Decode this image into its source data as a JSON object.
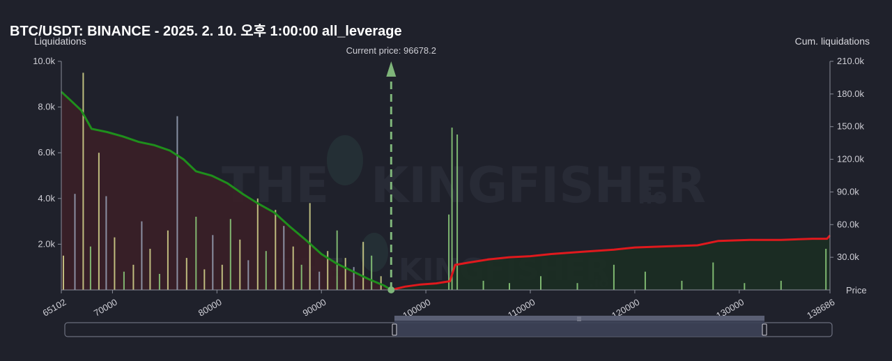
{
  "title": "BTC/USDT: BINANCE - 2025. 2. 10. 오후 1:00:00 all_leverage",
  "watermark": {
    "brand": "THE",
    "brand2": "KINGFISHER",
    "suffix": ".io"
  },
  "colors": {
    "background": "#1f212b",
    "long_cum_line": "#1f8f1c",
    "short_cum_line": "#e0191d",
    "long_area": "#3a1f27",
    "short_area": "#1b2e22",
    "bar_yellow": "#d8d88e",
    "bar_green": "#8fd17e",
    "bar_grey": "#9aa3b8",
    "current_price_line": "#7fb57a",
    "scrollbar_fill": "#3d4258"
  },
  "chart_data": {
    "type": "bar",
    "title": "BTC/USDT: BINANCE - 2025. 2. 10. 오후 1:00:00 all_leverage",
    "xlabel": "Price",
    "ylabel": "Liquidations",
    "y2label": "Cum. liquidations",
    "xlim": [
      65102,
      138686
    ],
    "ylim": [
      0,
      10000
    ],
    "y2lim": [
      0,
      210000
    ],
    "x_ticks": [
      "65102",
      "70000",
      "80000",
      "90000",
      "100000",
      "110000",
      "120000",
      "130000",
      "138686"
    ],
    "y_ticks": [
      "10.0k",
      "8.0k",
      "6.0k",
      "4.0k",
      "2.0k"
    ],
    "y2_ticks": [
      "210.0k",
      "180.0k",
      "150.0k",
      "120.0k",
      "90.0k",
      "60.0k",
      "30.0k"
    ],
    "current_price": 96678.2,
    "current_price_label": "Current price: 96678.2",
    "cumulative_long": {
      "name": "",
      "x": [
        65102,
        66000,
        67000,
        68000,
        69500,
        71000,
        72500,
        74000,
        75500,
        76800,
        78000,
        79500,
        81000,
        82500,
        84000,
        85500,
        87000,
        88500,
        90000,
        91500,
        93000,
        94500,
        96000,
        96678
      ],
      "y": [
        182000,
        174000,
        165000,
        148000,
        145000,
        141000,
        136000,
        133000,
        128000,
        120000,
        109000,
        105000,
        98000,
        88000,
        79000,
        71000,
        58000,
        46000,
        33000,
        24000,
        17000,
        10000,
        4000,
        0
      ]
    },
    "cumulative_short": {
      "name": "",
      "x": [
        96678,
        98000,
        99500,
        101000,
        102300,
        102800,
        104000,
        106000,
        108000,
        110000,
        112000,
        115000,
        118000,
        120000,
        123000,
        126000,
        128000,
        131000,
        134000,
        137000,
        138400,
        138686
      ],
      "y": [
        0,
        3000,
        5000,
        6000,
        8000,
        23000,
        25000,
        28000,
        30000,
        31000,
        33000,
        35000,
        37000,
        39000,
        40000,
        41000,
        45000,
        46000,
        46000,
        47000,
        47000,
        50000
      ]
    },
    "bars_long_side": {
      "price": [
        65300,
        66400,
        67200,
        67900,
        68700,
        69400,
        70200,
        71100,
        72000,
        72800,
        73600,
        74500,
        75300,
        76200,
        77100,
        78000,
        78800,
        79600,
        80500,
        81300,
        82200,
        83000,
        83900,
        84700,
        85600,
        86400,
        87300,
        88100,
        88900,
        89800,
        90600,
        91500,
        92300,
        93100,
        94000,
        94800,
        95700
      ],
      "value": [
        1500,
        4200,
        9500,
        1900,
        6000,
        4100,
        2300,
        800,
        1100,
        3000,
        1800,
        700,
        2600,
        7600,
        1400,
        3200,
        900,
        2400,
        1100,
        3100,
        2200,
        1300,
        4000,
        1700,
        3500,
        2800,
        1900,
        1100,
        3800,
        800,
        1700,
        2600,
        1400,
        1000,
        2100,
        1500,
        600
      ]
    },
    "bars_short_side": {
      "price": [
        102200,
        102500,
        103000,
        105500,
        108000,
        111000,
        114500,
        118000,
        121000,
        124500,
        127500,
        130500,
        134000,
        138300
      ],
      "value": [
        3300,
        7100,
        6800,
        400,
        300,
        600,
        300,
        1100,
        800,
        400,
        1200,
        300,
        400,
        1800
      ]
    }
  }
}
